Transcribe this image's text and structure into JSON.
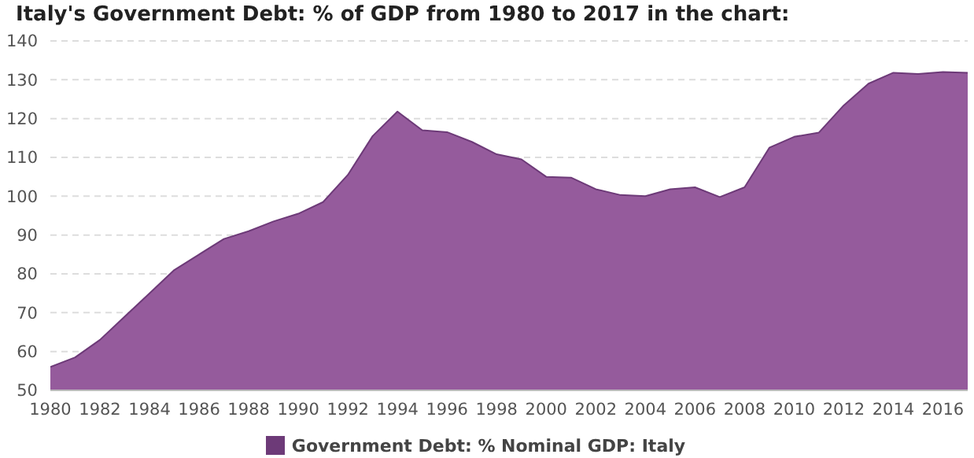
{
  "chart_data": {
    "type": "area",
    "title": "Italy's Government Debt: % of GDP from 1980 to 2017 in the chart:",
    "x": [
      1980,
      1981,
      1982,
      1983,
      1984,
      1985,
      1986,
      1987,
      1988,
      1989,
      1990,
      1991,
      1992,
      1993,
      1994,
      1995,
      1996,
      1997,
      1998,
      1999,
      2000,
      2001,
      2002,
      2003,
      2004,
      2005,
      2006,
      2007,
      2008,
      2009,
      2010,
      2011,
      2012,
      2013,
      2014,
      2015,
      2016,
      2017
    ],
    "series": [
      {
        "name": "Government Debt: % Nominal GDP: Italy",
        "color": "#955b9c",
        "values": [
          56,
          58.5,
          63,
          69,
          75,
          81,
          85,
          89,
          91,
          93.5,
          95.5,
          98.5,
          105.5,
          115.5,
          121.8,
          117,
          116.5,
          114,
          110.8,
          109.5,
          105,
          104.8,
          101.8,
          100.3,
          100,
          101.8,
          102.3,
          99.8,
          102.3,
          112.5,
          115.3,
          116.4,
          123.4,
          129,
          131.8,
          131.5,
          132,
          131.8
        ]
      }
    ],
    "xlim": [
      1980,
      2017
    ],
    "xticks": [
      1980,
      1982,
      1984,
      1986,
      1988,
      1990,
      1992,
      1994,
      1996,
      1998,
      2000,
      2002,
      2004,
      2006,
      2008,
      2010,
      2012,
      2014,
      2016
    ],
    "ylim": [
      50,
      140
    ],
    "yticks": [
      50,
      60,
      70,
      80,
      90,
      100,
      110,
      120,
      130,
      140
    ],
    "grid": "y",
    "legend": "bottom"
  }
}
